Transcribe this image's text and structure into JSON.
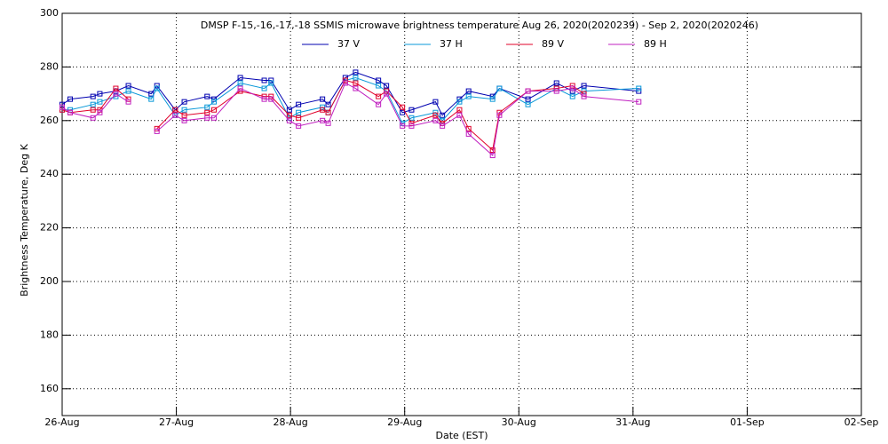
{
  "chart_data": {
    "type": "line",
    "title": "DMSP F-15,-16,-17,-18 SSMIS microwave brightness temperature Aug 26, 2020(2020239) - Sep  2, 2020(2020246)",
    "x_label": "Date (EST)",
    "y_label": "Brightness Temperature, Deg K",
    "xlim": [
      0,
      7
    ],
    "xticks": [
      {
        "value": 0,
        "label": "26-Aug"
      },
      {
        "value": 1,
        "label": "27-Aug"
      },
      {
        "value": 2,
        "label": "28-Aug"
      },
      {
        "value": 3,
        "label": "29-Aug"
      },
      {
        "value": 4,
        "label": "30-Aug"
      },
      {
        "value": 5,
        "label": "31-Aug"
      },
      {
        "value": 6,
        "label": "01-Sep"
      },
      {
        "value": 7,
        "label": "02-Sep"
      }
    ],
    "ylim": [
      150,
      300
    ],
    "yticks": [
      160,
      180,
      200,
      220,
      240,
      260,
      280,
      300
    ],
    "grid": true,
    "x": [
      0,
      0.07,
      0.27,
      0.33,
      0.47,
      0.58,
      0.78,
      0.83,
      0.99,
      1.07,
      1.27,
      1.33,
      1.56,
      1.77,
      1.83,
      1.99,
      2.07,
      2.28,
      2.33,
      2.48,
      2.57,
      2.77,
      2.84,
      2.98,
      3.06,
      3.27,
      3.33,
      3.48,
      3.56,
      3.77,
      3.83,
      4.08,
      4.33,
      4.47,
      4.57,
      5.05
    ],
    "series": [
      {
        "name": "37 V",
        "color": "#0000b0",
        "values": [
          266,
          268,
          269,
          270,
          271,
          273,
          270,
          273,
          264,
          267,
          269,
          268,
          276,
          275,
          275,
          264,
          266,
          268,
          266,
          276,
          278,
          275,
          273,
          263,
          264,
          267,
          262,
          268,
          271,
          269,
          272,
          268,
          274,
          271,
          273,
          271
        ]
      },
      {
        "name": "37 H",
        "color": "#0898d8",
        "values": [
          264,
          264,
          266,
          267,
          269,
          271,
          268,
          272,
          262,
          264,
          265,
          267,
          274,
          272,
          274,
          261,
          263,
          265,
          263,
          275,
          276,
          273,
          271,
          259,
          261,
          263,
          260,
          267,
          269,
          268,
          272,
          266,
          272,
          269,
          271,
          272
        ]
      },
      {
        "name": "89 V",
        "color": "#e0002a",
        "values": [
          264,
          263,
          264,
          264,
          272,
          268,
          null,
          257,
          264,
          262,
          263,
          264,
          271,
          269,
          269,
          262,
          261,
          264,
          263,
          275,
          274,
          269,
          271,
          265,
          259,
          262,
          259,
          264,
          257,
          249,
          263,
          271,
          272,
          273,
          270,
          null
        ]
      },
      {
        "name": "89 H",
        "color": "#c020c0",
        "values": [
          265,
          263,
          261,
          263,
          270,
          267,
          null,
          256,
          262,
          260,
          261,
          261,
          272,
          268,
          268,
          260,
          258,
          260,
          259,
          274,
          272,
          266,
          270,
          258,
          258,
          260,
          258,
          262,
          255,
          247,
          262,
          271,
          271,
          272,
          269,
          267
        ]
      }
    ]
  }
}
